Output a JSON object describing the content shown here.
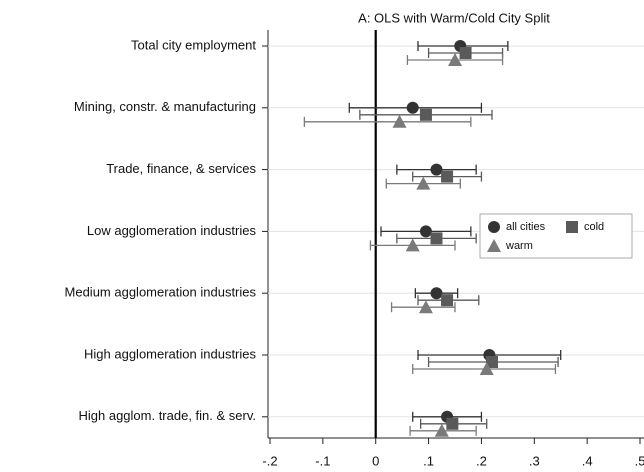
{
  "chart_data": {
    "type": "coefplot",
    "subtitle": "A: OLS with Warm/Cold City Split",
    "categories": [
      "Total city employment",
      "Mining, constr. & manufacturing",
      "Trade, finance, & services",
      "Low agglomeration industries",
      "Medium agglomeration industries",
      "High agglomeration industries",
      "High agglom. trade, fin. & serv."
    ],
    "series": [
      {
        "name": "all cities",
        "marker": "circle",
        "color": "#333333",
        "values": [
          0.16,
          0.07,
          0.115,
          0.095,
          0.115,
          0.215,
          0.135
        ],
        "lower": [
          0.08,
          -0.05,
          0.04,
          0.01,
          0.075,
          0.08,
          0.07
        ],
        "upper": [
          0.25,
          0.2,
          0.19,
          0.18,
          0.155,
          0.35,
          0.2
        ]
      },
      {
        "name": "cold",
        "marker": "square",
        "color": "#5a5a5a",
        "values": [
          0.17,
          0.095,
          0.135,
          0.115,
          0.135,
          0.22,
          0.145
        ],
        "lower": [
          0.1,
          -0.03,
          0.07,
          0.04,
          0.08,
          0.1,
          0.085
        ],
        "upper": [
          0.24,
          0.22,
          0.2,
          0.19,
          0.195,
          0.345,
          0.21
        ]
      },
      {
        "name": "warm",
        "marker": "triangle",
        "color": "#7a7a7a",
        "values": [
          0.15,
          0.045,
          0.09,
          0.07,
          0.095,
          0.21,
          0.125
        ],
        "lower": [
          0.06,
          -0.135,
          0.02,
          -0.01,
          0.03,
          0.07,
          0.065
        ],
        "upper": [
          0.24,
          0.18,
          0.16,
          0.15,
          0.15,
          0.34,
          0.19
        ]
      }
    ],
    "xlim": [
      -0.2,
      0.5
    ],
    "xticks": [
      {
        "value": -0.2,
        "label": "-.2"
      },
      {
        "value": -0.1,
        "label": "-.1"
      },
      0,
      {
        "value": 0.1,
        "label": ".1"
      },
      {
        "value": 0.2,
        "label": ".2"
      },
      {
        "value": 0.3,
        "label": ".3"
      },
      {
        "value": 0.4,
        "label": ".4"
      },
      {
        "value": 0.5,
        "label": ".5"
      }
    ],
    "reference_line": 0,
    "grid": true,
    "legend_position": "right"
  }
}
